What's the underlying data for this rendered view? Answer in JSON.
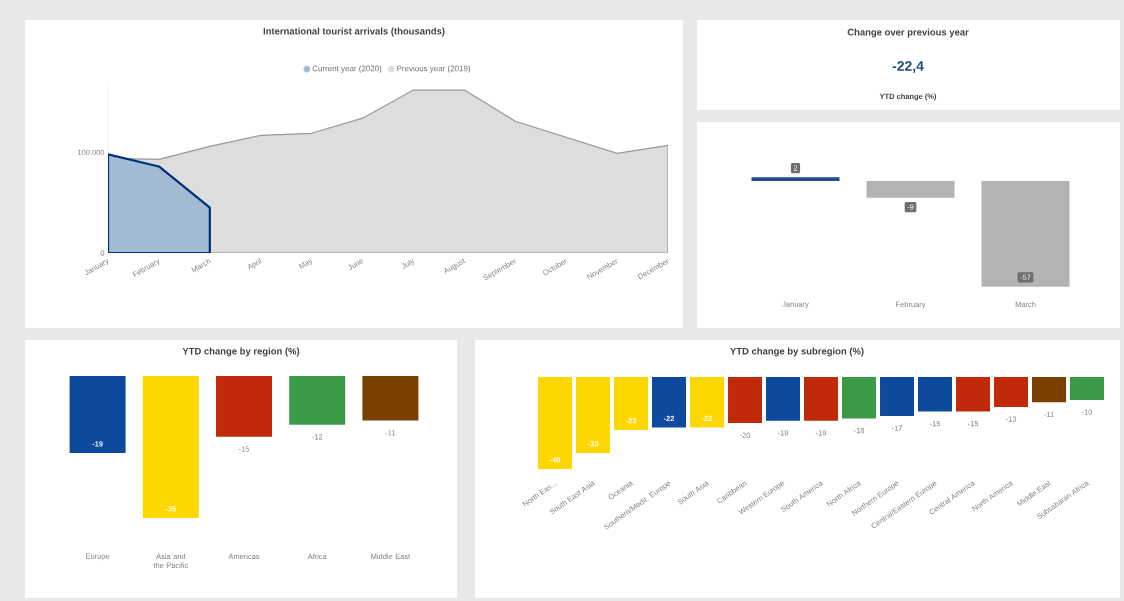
{
  "chart_data": [
    {
      "type": "area",
      "title": "International tourist arrivals (thousands)",
      "categories": [
        "January",
        "February",
        "March",
        "April",
        "May",
        "June",
        "July",
        "August",
        "September",
        "October",
        "November",
        "December"
      ],
      "series": [
        {
          "name": "Current year (2020)",
          "color": "#a3bad3",
          "values": [
            98000,
            86000,
            45000,
            null,
            null,
            null,
            null,
            null,
            null,
            null,
            null,
            null
          ]
        },
        {
          "name": "Previous year (2019)",
          "color": "#dddddd",
          "values": [
            94000,
            93000,
            106000,
            117000,
            119000,
            134000,
            162000,
            162000,
            131000,
            115000,
            99000,
            107000
          ]
        }
      ],
      "ylim": [
        0,
        170000
      ],
      "yticks": [
        0,
        {
          "value": 100000,
          "label": "100.000"
        }
      ],
      "legend": "top"
    },
    {
      "type": "other",
      "title": "Change over previous year",
      "annotations": [
        "-22,4",
        "YTD change (%)"
      ]
    },
    {
      "type": "bar",
      "categories": [
        "January",
        "February",
        "March"
      ],
      "values": [
        2,
        -9,
        -57
      ],
      "colors": [
        "#1f4e8c",
        "#b3b3b3",
        "#b3b3b3"
      ],
      "data_labels": true
    },
    {
      "type": "bar",
      "title": "YTD change by region (%)",
      "categories": [
        "Europe",
        "Asia and the Pacific",
        "Americas",
        "Africa",
        "Middle East"
      ],
      "values": [
        -19,
        -35,
        -15,
        -12,
        -11
      ],
      "colors": [
        "#0d4a9e",
        "#ffd700",
        "#c02a0a",
        "#3a9a48",
        "#7b3f00"
      ],
      "data_labels": true
    },
    {
      "type": "bar",
      "title": "YTD change by subregion (%)",
      "categories": [
        "North Eas...",
        "South East Asia",
        "Oceania",
        "Southern/Medit. Europe",
        "South Asia",
        "Caribbean",
        "Western Europe",
        "South America",
        "North Africa",
        "Northern Europe",
        "Central/Eastern Europe",
        "Central America",
        "North America",
        "Middle East",
        "Subsaharan Africa"
      ],
      "values": [
        -40,
        -33,
        -23,
        -22,
        -22,
        -20,
        -19,
        -19,
        -18,
        -17,
        -15,
        -15,
        -13,
        -11,
        -10
      ],
      "colors": [
        "#ffd700",
        "#ffd700",
        "#ffd700",
        "#0d4a9e",
        "#ffd700",
        "#c02a0a",
        "#0d4a9e",
        "#c02a0a",
        "#3a9a48",
        "#0d4a9e",
        "#0d4a9e",
        "#c02a0a",
        "#c02a0a",
        "#7b3f00",
        "#3a9a48"
      ],
      "data_labels": true
    }
  ]
}
